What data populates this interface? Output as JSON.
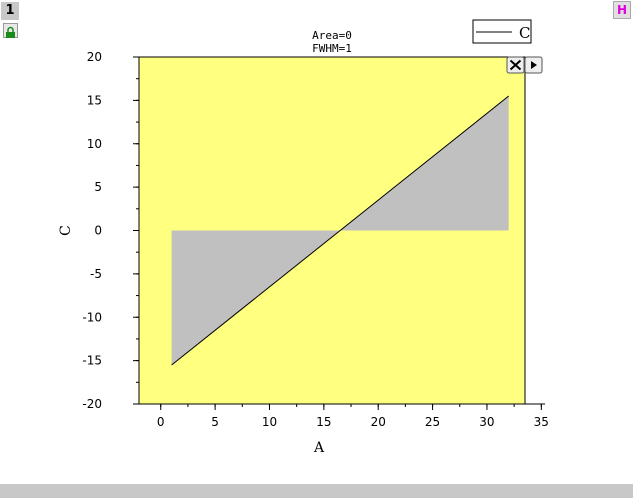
{
  "window": {
    "layer_number": "1",
    "h_button_label": "H"
  },
  "plot_controls": {
    "close_icon": "close-icon",
    "play_icon": "play-icon"
  },
  "colors": {
    "plot_background": "#ffff80",
    "fill": "#c0c0c0",
    "line": "#000000"
  },
  "chart_data": {
    "type": "area",
    "annotations": [
      "Area=0",
      "FWHM=1"
    ],
    "xlabel": "A",
    "ylabel": "C",
    "xlim": [
      -2,
      33.5
    ],
    "ylim": [
      -20,
      20
    ],
    "xticks": [
      0,
      5,
      10,
      15,
      20,
      25,
      30,
      35
    ],
    "yticks": [
      -20,
      -15,
      -10,
      -5,
      0,
      5,
      10,
      15,
      20
    ],
    "legend": {
      "position": "top-right",
      "entries": [
        "C"
      ]
    },
    "series": [
      {
        "name": "C",
        "x": [
          1,
          32
        ],
        "y": [
          -15.5,
          15.5
        ],
        "fill_to": 0
      }
    ]
  }
}
